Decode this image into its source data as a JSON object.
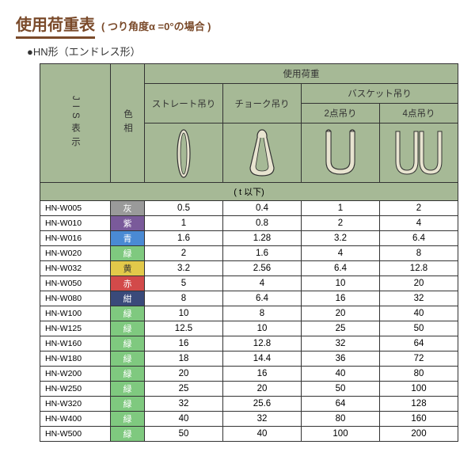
{
  "title": "使用荷重表",
  "title_note": "( つり角度α =0°の場合 )",
  "subtitle": "●HN形（エンドレス形）",
  "headers": {
    "jis": "JIS表示",
    "color": "色相",
    "usage": "使用荷重",
    "straight": "ストレート吊り",
    "choke": "チョーク吊り",
    "basket": "バスケット吊り",
    "basket2": "2点吊り",
    "basket4": "4点吊り",
    "unit": "( t 以下)"
  },
  "colors": {
    "灰": "#9a9a9a",
    "紫": "#7a5a9a",
    "青": "#4a8ad4",
    "緑": "#7fc97f",
    "黄": "#e2c94a",
    "赤": "#d24a4a",
    "紺": "#3a4a7a"
  },
  "rows": [
    {
      "code": "HN-W005",
      "color": "灰",
      "v": [
        0.5,
        0.4,
        1.0,
        2.0
      ]
    },
    {
      "code": "HN-W010",
      "color": "紫",
      "v": [
        1.0,
        0.8,
        2.0,
        4.0
      ]
    },
    {
      "code": "HN-W016",
      "color": "青",
      "v": [
        1.6,
        1.28,
        3.2,
        6.4
      ]
    },
    {
      "code": "HN-W020",
      "color": "緑",
      "v": [
        2.0,
        1.6,
        4.0,
        8.0
      ]
    },
    {
      "code": "HN-W032",
      "color": "黄",
      "v": [
        3.2,
        2.56,
        6.4,
        12.8
      ]
    },
    {
      "code": "HN-W050",
      "color": "赤",
      "v": [
        5.0,
        4.0,
        10.0,
        20.0
      ]
    },
    {
      "code": "HN-W080",
      "color": "紺",
      "v": [
        8.0,
        6.4,
        16.0,
        32.0
      ]
    },
    {
      "code": "HN-W100",
      "color": "緑",
      "v": [
        10.0,
        8.0,
        20.0,
        40.0
      ]
    },
    {
      "code": "HN-W125",
      "color": "緑",
      "v": [
        12.5,
        10.0,
        25.0,
        50.0
      ]
    },
    {
      "code": "HN-W160",
      "color": "緑",
      "v": [
        16.0,
        12.8,
        32.0,
        64.0
      ]
    },
    {
      "code": "HN-W180",
      "color": "緑",
      "v": [
        18.0,
        14.4,
        36.0,
        72.0
      ]
    },
    {
      "code": "HN-W200",
      "color": "緑",
      "v": [
        20.0,
        16.0,
        40.0,
        80.0
      ]
    },
    {
      "code": "HN-W250",
      "color": "緑",
      "v": [
        25.0,
        20.0,
        50.0,
        100.0
      ]
    },
    {
      "code": "HN-W320",
      "color": "緑",
      "v": [
        32.0,
        25.6,
        64.0,
        128.0
      ]
    },
    {
      "code": "HN-W400",
      "color": "緑",
      "v": [
        40.0,
        32.0,
        80.0,
        160.0
      ]
    },
    {
      "code": "HN-W500",
      "color": "緑",
      "v": [
        50.0,
        40.0,
        100.0,
        200.0
      ]
    }
  ]
}
